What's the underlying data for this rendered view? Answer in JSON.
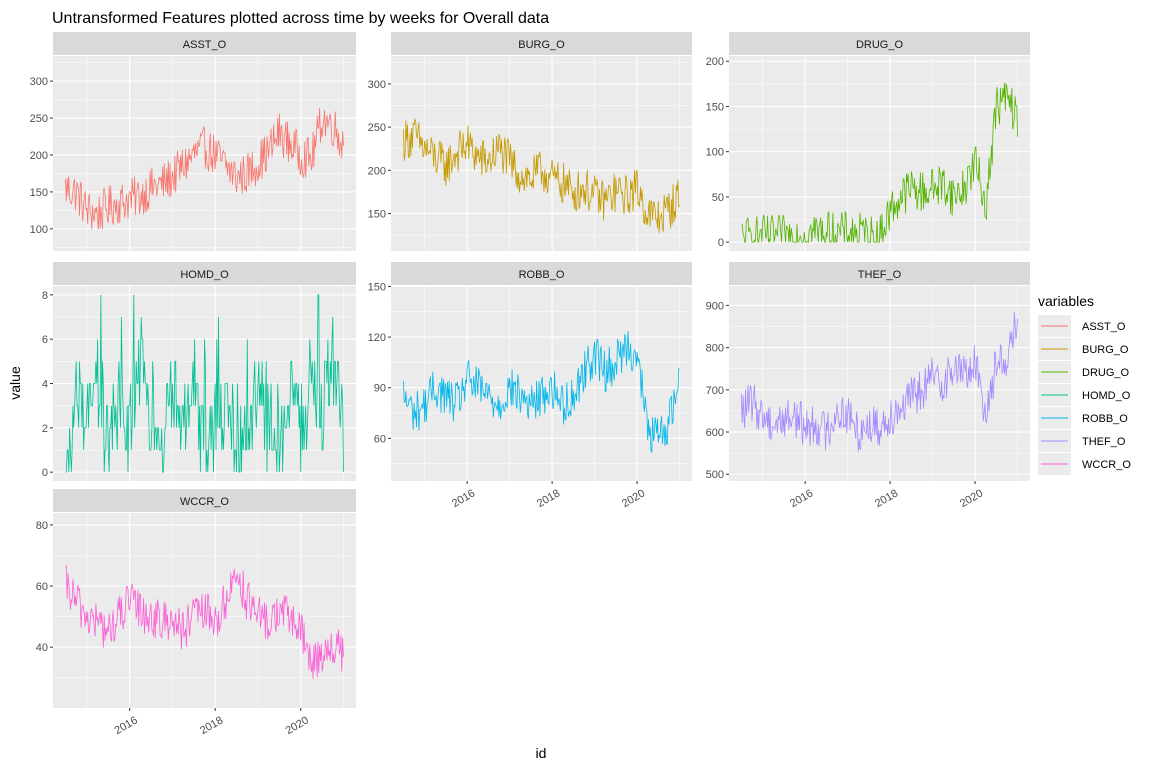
{
  "title": "Untransformed Features plotted across time by weeks for Overall data",
  "xlabel": "id",
  "ylabel": "value",
  "legend": {
    "title": "variables"
  },
  "chart_data": {
    "type": "line",
    "title": "Untransformed Features plotted across time by weeks for Overall data",
    "xlabel": "id",
    "ylabel": "value",
    "x_unit": "year",
    "xlim": [
      2014.5,
      2021.0
    ],
    "x_ticks": [
      2016,
      2018,
      2020
    ],
    "x_tick_labels": [
      "2016",
      "2018",
      "2020"
    ],
    "facet_layout": "wrap 3 columns, free y scales",
    "legend_position": "right",
    "grid": true,
    "series": [
      {
        "name": "ASST_O",
        "color": "#F8766D",
        "ylim": [
          82,
          322
        ],
        "y_ticks": [
          100,
          150,
          200,
          250,
          300
        ],
        "x": [
          2014.5,
          2014.75,
          2015.0,
          2015.25,
          2015.5,
          2015.75,
          2016.0,
          2016.25,
          2016.5,
          2016.75,
          2017.0,
          2017.25,
          2017.5,
          2017.75,
          2018.0,
          2018.25,
          2018.5,
          2018.75,
          2019.0,
          2019.25,
          2019.5,
          2019.75,
          2020.0,
          2020.25,
          2020.5,
          2020.75,
          2021.0
        ],
        "values": [
          155,
          150,
          125,
          120,
          130,
          135,
          140,
          145,
          155,
          160,
          170,
          185,
          200,
          210,
          200,
          185,
          170,
          175,
          190,
          205,
          230,
          215,
          200,
          195,
          250,
          240,
          215
        ]
      },
      {
        "name": "BURG_O",
        "color": "#C49A00",
        "ylim": [
          117,
          322
        ],
        "y_ticks": [
          150,
          200,
          250,
          300
        ],
        "x": [
          2014.5,
          2014.75,
          2015.0,
          2015.25,
          2015.5,
          2015.75,
          2016.0,
          2016.25,
          2016.5,
          2016.75,
          2017.0,
          2017.25,
          2017.5,
          2017.75,
          2018.0,
          2018.25,
          2018.5,
          2018.75,
          2019.0,
          2019.25,
          2019.5,
          2019.75,
          2020.0,
          2020.25,
          2020.5,
          2020.75,
          2021.0
        ],
        "values": [
          235,
          240,
          225,
          215,
          205,
          220,
          230,
          215,
          210,
          225,
          210,
          195,
          190,
          200,
          190,
          185,
          175,
          180,
          170,
          165,
          175,
          170,
          180,
          150,
          145,
          155,
          170
        ]
      },
      {
        "name": "DRUG_O",
        "color": "#53B400",
        "ylim": [
          0,
          196
        ],
        "y_ticks": [
          0,
          50,
          100,
          150,
          200
        ],
        "x": [
          2014.5,
          2014.75,
          2015.0,
          2015.25,
          2015.5,
          2015.75,
          2016.0,
          2016.25,
          2016.5,
          2016.75,
          2017.0,
          2017.25,
          2017.5,
          2017.75,
          2018.0,
          2018.25,
          2018.5,
          2018.75,
          2019.0,
          2019.25,
          2019.5,
          2019.75,
          2020.0,
          2020.25,
          2020.5,
          2020.75,
          2021.0
        ],
        "values": [
          5,
          6,
          7,
          6,
          7,
          8,
          10,
          12,
          11,
          10,
          11,
          10,
          8,
          5,
          35,
          50,
          60,
          55,
          60,
          65,
          50,
          60,
          90,
          40,
          150,
          160,
          135
        ]
      },
      {
        "name": "HOMD_O",
        "color": "#00C094",
        "ylim": [
          0,
          8
        ],
        "y_ticks": [
          0,
          2,
          4,
          6,
          8
        ],
        "x": [
          2014.5,
          2014.75,
          2015.0,
          2015.25,
          2015.5,
          2015.75,
          2016.0,
          2016.25,
          2016.5,
          2016.75,
          2017.0,
          2017.25,
          2017.5,
          2017.75,
          2018.0,
          2018.25,
          2018.5,
          2018.75,
          2019.0,
          2019.25,
          2019.5,
          2019.75,
          2020.0,
          2020.25,
          2020.5,
          2020.75,
          2021.0
        ],
        "values": [
          0,
          3,
          2,
          4,
          1,
          3,
          2,
          5,
          2,
          1,
          4,
          2,
          3,
          1,
          2,
          3,
          1,
          2,
          4,
          2,
          1,
          3,
          2,
          4,
          3,
          5,
          2
        ]
      },
      {
        "name": "ROBB_O",
        "color": "#00B6EB",
        "ylim": [
          40,
          145
        ],
        "y_ticks": [
          60,
          90,
          120,
          150
        ],
        "x": [
          2014.5,
          2014.75,
          2015.0,
          2015.25,
          2015.5,
          2015.75,
          2016.0,
          2016.25,
          2016.5,
          2016.75,
          2017.0,
          2017.25,
          2017.5,
          2017.75,
          2018.0,
          2018.25,
          2018.5,
          2018.75,
          2019.0,
          2019.25,
          2019.5,
          2019.75,
          2020.0,
          2020.25,
          2020.5,
          2020.75,
          2021.0
        ],
        "values": [
          85,
          75,
          80,
          90,
          85,
          80,
          95,
          90,
          85,
          80,
          90,
          85,
          80,
          85,
          90,
          80,
          85,
          100,
          110,
          100,
          105,
          115,
          110,
          65,
          60,
          70,
          95
        ]
      },
      {
        "name": "THEF_O",
        "color": "#A58AFF",
        "ylim": [
          505,
          925
        ],
        "y_ticks": [
          500,
          600,
          700,
          800,
          900
        ],
        "x": [
          2014.5,
          2014.75,
          2015.0,
          2015.25,
          2015.5,
          2015.75,
          2016.0,
          2016.25,
          2016.5,
          2016.75,
          2017.0,
          2017.25,
          2017.5,
          2017.75,
          2018.0,
          2018.25,
          2018.5,
          2018.75,
          2019.0,
          2019.25,
          2019.5,
          2019.75,
          2020.0,
          2020.25,
          2020.5,
          2020.75,
          2021.0
        ],
        "values": [
          650,
          670,
          640,
          620,
          630,
          640,
          610,
          620,
          600,
          650,
          640,
          600,
          620,
          610,
          640,
          660,
          680,
          700,
          730,
          720,
          750,
          740,
          760,
          650,
          760,
          780,
          860
        ]
      },
      {
        "name": "WCCR_O",
        "color": "#FB61D7",
        "ylim": [
          23,
          81
        ],
        "y_ticks": [
          40,
          60,
          80
        ],
        "x": [
          2014.5,
          2014.75,
          2015.0,
          2015.25,
          2015.5,
          2015.75,
          2016.0,
          2016.25,
          2016.5,
          2016.75,
          2017.0,
          2017.25,
          2017.5,
          2017.75,
          2018.0,
          2018.25,
          2018.5,
          2018.75,
          2019.0,
          2019.25,
          2019.5,
          2019.75,
          2020.0,
          2020.25,
          2020.5,
          2020.75,
          2021.0
        ],
        "values": [
          60,
          55,
          50,
          48,
          45,
          50,
          55,
          52,
          50,
          48,
          50,
          45,
          50,
          52,
          48,
          55,
          65,
          55,
          50,
          48,
          52,
          50,
          45,
          35,
          38,
          40,
          38
        ]
      }
    ]
  }
}
